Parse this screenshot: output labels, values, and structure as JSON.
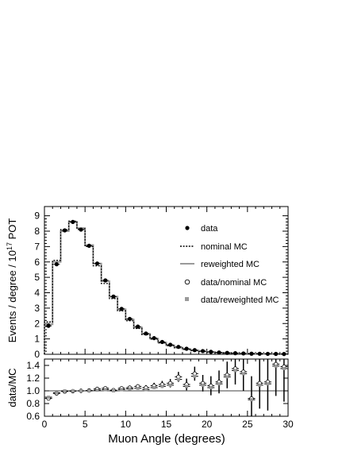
{
  "chart_data": [
    {
      "type": "line",
      "ylabel": "Events / degree / 10",
      "ylabel_exp": "17",
      "ylabel_suffix": " POT",
      "xlim": [
        0,
        30
      ],
      "ylim": [
        0,
        9.6
      ],
      "yticks": [
        0,
        1,
        2,
        3,
        4,
        5,
        6,
        7,
        8,
        9
      ],
      "grid": false,
      "legend_position": "right",
      "x": [
        0.5,
        1.5,
        2.5,
        3.5,
        4.5,
        5.5,
        6.5,
        7.5,
        8.5,
        9.5,
        10.5,
        11.5,
        12.5,
        13.5,
        14.5,
        15.5,
        16.5,
        17.5,
        18.5,
        19.5,
        20.5,
        21.5,
        22.5,
        23.5,
        24.5,
        25.5,
        26.5,
        27.5,
        28.5,
        29.5
      ],
      "series": [
        {
          "name": "data",
          "marker": "filled-circle",
          "values": [
            1.85,
            5.85,
            8.05,
            8.6,
            8.1,
            7.05,
            5.9,
            4.8,
            3.75,
            2.95,
            2.3,
            1.8,
            1.35,
            1.05,
            0.8,
            0.62,
            0.48,
            0.36,
            0.27,
            0.21,
            0.16,
            0.12,
            0.09,
            0.07,
            0.055,
            0.04,
            0.035,
            0.03,
            0.025,
            0.02
          ]
        },
        {
          "name": "nominal MC",
          "line": "dotted",
          "values": [
            2.1,
            6.1,
            8.1,
            8.65,
            8.15,
            7.0,
            5.75,
            4.6,
            3.62,
            2.82,
            2.18,
            1.68,
            1.28,
            0.98,
            0.74,
            0.56,
            0.42,
            0.32,
            0.24,
            0.18,
            0.14,
            0.1,
            0.08,
            0.06,
            0.045,
            0.035,
            0.03,
            0.025,
            0.02,
            0.015
          ]
        },
        {
          "name": "reweighted MC",
          "line": "solid-gray",
          "values": [
            1.95,
            6.0,
            8.0,
            8.6,
            8.2,
            7.1,
            5.9,
            4.75,
            3.75,
            2.92,
            2.26,
            1.75,
            1.33,
            1.02,
            0.77,
            0.58,
            0.44,
            0.33,
            0.25,
            0.19,
            0.145,
            0.105,
            0.082,
            0.062,
            0.047,
            0.036,
            0.03,
            0.025,
            0.02,
            0.015
          ]
        }
      ]
    },
    {
      "type": "scatter",
      "xlabel": "Muon Angle (degrees)",
      "ylabel": "data/MC",
      "xlim": [
        0,
        30
      ],
      "ylim": [
        0.6,
        1.5
      ],
      "xticks": [
        0,
        5,
        10,
        15,
        20,
        25,
        30
      ],
      "yticks": [
        0.6,
        0.8,
        1.0,
        1.2,
        1.4
      ],
      "ytick_labels": [
        "0.6",
        "0.8",
        "1.0",
        "1.2",
        "1.4"
      ],
      "reference_line": 1.0,
      "x": [
        0.5,
        1.5,
        2.5,
        3.5,
        4.5,
        5.5,
        6.5,
        7.5,
        8.5,
        9.5,
        10.5,
        11.5,
        12.5,
        13.5,
        14.5,
        15.5,
        16.5,
        17.5,
        18.5,
        19.5,
        20.5,
        21.5,
        22.5,
        23.5,
        24.5,
        25.5,
        26.5,
        27.5,
        28.5,
        29.5
      ],
      "series": [
        {
          "name": "data/nominal MC",
          "marker": "open-circle",
          "values": [
            0.88,
            0.96,
            0.99,
            0.995,
            1.0,
            1.005,
            1.03,
            1.04,
            1.01,
            1.04,
            1.05,
            1.07,
            1.05,
            1.08,
            1.1,
            1.12,
            1.22,
            1.1,
            1.27,
            1.12,
            1.08,
            1.14,
            1.25,
            1.35,
            1.3,
            0.88,
            1.12,
            1.14,
            1.42,
            1.38
          ],
          "errors": [
            0.02,
            0.015,
            0.012,
            0.012,
            0.012,
            0.013,
            0.015,
            0.018,
            0.02,
            0.024,
            0.028,
            0.033,
            0.04,
            0.047,
            0.056,
            0.066,
            0.078,
            0.092,
            0.11,
            0.13,
            0.15,
            0.18,
            0.21,
            0.25,
            0.3,
            0.35,
            0.4,
            0.45,
            0.5,
            0.55
          ]
        },
        {
          "name": "data/reweighted MC",
          "marker": "gray-square",
          "values": [
            0.9,
            0.97,
            1.0,
            1.0,
            1.0,
            1.0,
            1.01,
            1.02,
            1.0,
            1.02,
            1.03,
            1.04,
            1.02,
            1.05,
            1.07,
            1.09,
            1.18,
            1.07,
            1.23,
            1.09,
            1.05,
            1.11,
            1.22,
            1.32,
            1.27,
            0.86,
            1.09,
            1.11,
            1.39,
            1.35
          ],
          "errors": [
            0.02,
            0.015,
            0.012,
            0.012,
            0.012,
            0.013,
            0.015,
            0.018,
            0.02,
            0.024,
            0.028,
            0.033,
            0.04,
            0.047,
            0.056,
            0.066,
            0.078,
            0.092,
            0.11,
            0.13,
            0.15,
            0.18,
            0.21,
            0.25,
            0.3,
            0.35,
            0.4,
            0.45,
            0.5,
            0.55
          ]
        }
      ]
    }
  ]
}
